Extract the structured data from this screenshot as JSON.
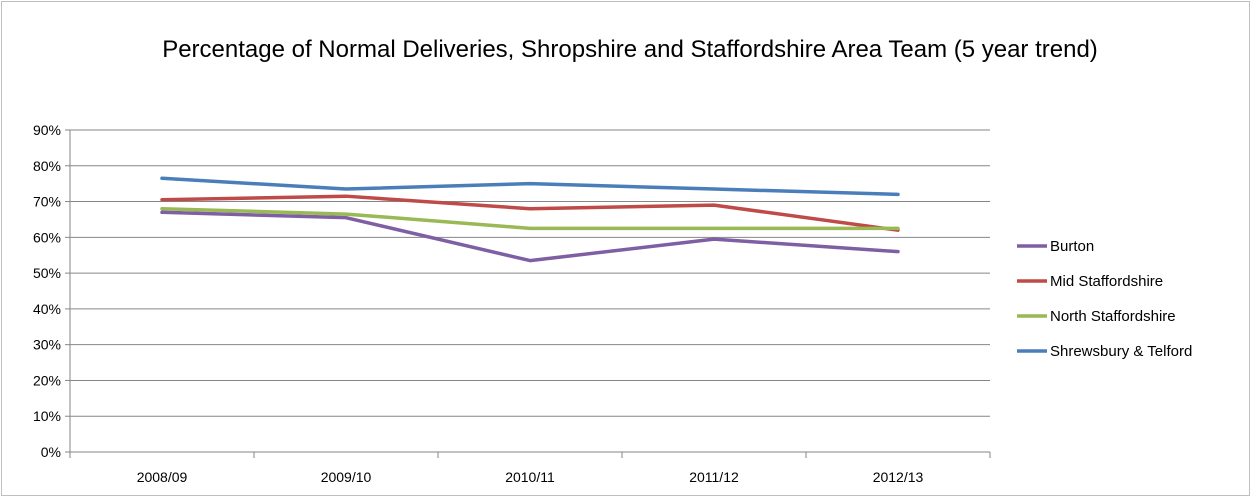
{
  "chart_data": {
    "type": "line",
    "title": "Percentage of Normal Deliveries, Shropshire and Staffordshire Area Team (5 year trend)",
    "xlabel": "",
    "ylabel": "",
    "categories": [
      "2008/09",
      "2009/10",
      "2010/11",
      "2011/12",
      "2012/13"
    ],
    "y_ticks": [
      "0%",
      "10%",
      "20%",
      "30%",
      "40%",
      "50%",
      "60%",
      "70%",
      "80%",
      "90%"
    ],
    "ylim": [
      0,
      90
    ],
    "y_unit": "%",
    "grid": true,
    "legend_position": "right",
    "series": [
      {
        "name": "Burton",
        "color": "#7e5fa4",
        "values": [
          67,
          65.5,
          53.5,
          59.5,
          56
        ]
      },
      {
        "name": "Mid Staffordshire",
        "color": "#be4b48",
        "values": [
          70.5,
          71.5,
          68,
          69,
          62
        ]
      },
      {
        "name": "North Staffordshire",
        "color": "#98b954",
        "values": [
          68,
          66.5,
          62.5,
          62.5,
          62.5
        ]
      },
      {
        "name": "Shrewsbury & Telford",
        "color": "#4a7ebb",
        "values": [
          76.5,
          73.5,
          75,
          73.5,
          72
        ]
      }
    ]
  }
}
